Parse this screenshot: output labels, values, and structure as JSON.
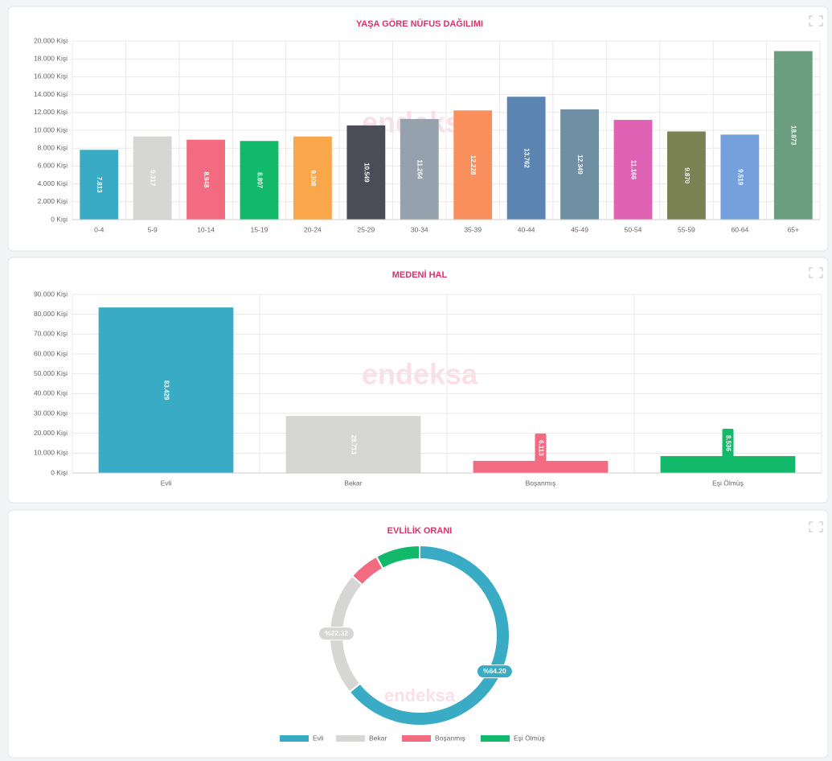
{
  "chart_data": [
    {
      "type": "bar",
      "title": "YAŞA GÖRE NÜFUS DAĞILIMI",
      "categories": [
        "0-4",
        "5-9",
        "10-14",
        "15-19",
        "20-24",
        "25-29",
        "30-34",
        "35-39",
        "40-44",
        "45-49",
        "50-54",
        "55-59",
        "60-64",
        "65+"
      ],
      "values": [
        7813,
        9317,
        8948,
        8807,
        9308,
        10549,
        11264,
        12228,
        13762,
        12349,
        11166,
        9870,
        9519,
        18873
      ],
      "value_labels": [
        "7.813",
        "9.317",
        "8.948",
        "8.807",
        "9.308",
        "10.549",
        "11.264",
        "12.228",
        "13.762",
        "12.349",
        "11.166",
        "9.870",
        "9.519",
        "18.873"
      ],
      "colors": [
        "#3aabc4",
        "#d6d6d4",
        "#f26b80",
        "#12b96a",
        "#f9a74a",
        "#4a4d57",
        "#95a2ad",
        "#f98f5c",
        "#5b84b0",
        "#6f8fa3",
        "#e062b5",
        "#7a8152",
        "#74a0dc",
        "#6a9e7f"
      ],
      "ylim": [
        0,
        20000
      ],
      "yticks": [
        {
          "value": 0,
          "label": "0 Kişi"
        },
        {
          "value": 2000,
          "label": "2.000 Kişi"
        },
        {
          "value": 4000,
          "label": "4.000 Kişi"
        },
        {
          "value": 6000,
          "label": "6.000 Kişi"
        },
        {
          "value": 8000,
          "label": "8.000 Kişi"
        },
        {
          "value": 10000,
          "label": "10.000 Kişi"
        },
        {
          "value": 12000,
          "label": "12.000 Kişi"
        },
        {
          "value": 14000,
          "label": "14.000 Kişi"
        },
        {
          "value": 16000,
          "label": "16.000 Kişi"
        },
        {
          "value": 18000,
          "label": "18.000 Kişi"
        },
        {
          "value": 20000,
          "label": "20.000 Kişi"
        }
      ],
      "grid": true,
      "watermark": "endeksa"
    },
    {
      "type": "bar",
      "title": "MEDENİ HAL",
      "categories": [
        "Evli",
        "Bekar",
        "Boşanmış",
        "Eşi Ölmüş"
      ],
      "values": [
        83429,
        28713,
        6113,
        8536
      ],
      "value_labels": [
        "83.429",
        "28.713",
        "6.113",
        "8.536"
      ],
      "colors": [
        "#3aabc4",
        "#d6d6d4",
        "#f26b80",
        "#12b96a"
      ],
      "ylim": [
        0,
        90000
      ],
      "yticks": [
        {
          "value": 0,
          "label": "0 Kişi"
        },
        {
          "value": 10000,
          "label": "10.000 Kişi"
        },
        {
          "value": 20000,
          "label": "20.000 Kişi"
        },
        {
          "value": 30000,
          "label": "30.000 Kişi"
        },
        {
          "value": 40000,
          "label": "40.000 Kişi"
        },
        {
          "value": 50000,
          "label": "50.000 Kişi"
        },
        {
          "value": 60000,
          "label": "60.000 Kişi"
        },
        {
          "value": 70000,
          "label": "70.000 Kişi"
        },
        {
          "value": 80000,
          "label": "80.000 Kişi"
        },
        {
          "value": 90000,
          "label": "90.000 Kişi"
        }
      ],
      "grid": true,
      "watermark": "endeksa"
    },
    {
      "type": "pie",
      "title": "EVLİLİK ORANI",
      "donut": true,
      "categories": [
        "Evli",
        "Bekar",
        "Boşanmış",
        "Eşi Ölmüş"
      ],
      "values": [
        64.2,
        22.32,
        5.5,
        7.98
      ],
      "value_labels": [
        "%64.20",
        "%22.32",
        null,
        null
      ],
      "colors": [
        "#3aabc4",
        "#d6d6d4",
        "#f26b80",
        "#12b96a"
      ],
      "watermark": "endeksa"
    }
  ]
}
